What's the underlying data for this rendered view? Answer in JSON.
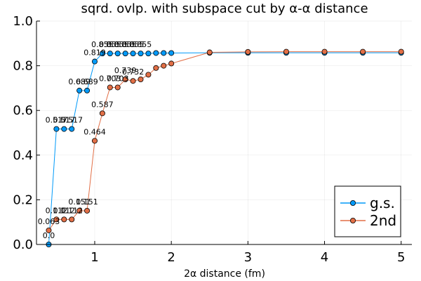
{
  "chart_data": {
    "type": "line",
    "title": "sqrd. ovlp. with subspace cut by α-α distance",
    "xlabel": "2α distance (fm)",
    "ylabel": "",
    "xlim": [
      0.24,
      5.14
    ],
    "ylim": [
      0,
      1.0
    ],
    "x_ticks": [
      1,
      2,
      3,
      4,
      5
    ],
    "x_tick_labels": [
      "1",
      "2",
      "3",
      "4",
      "5"
    ],
    "y_ticks": [
      0.0,
      0.2,
      0.4,
      0.6,
      0.8,
      1.0
    ],
    "y_tick_labels": [
      "0.0",
      "0.2",
      "0.4",
      "0.6",
      "0.8",
      "1.0"
    ],
    "grid": true,
    "legend_position": "bottom-right",
    "series": [
      {
        "name": "g.s.",
        "color": "#009af9",
        "x": [
          0.4,
          0.5,
          0.6,
          0.7,
          0.8,
          0.9,
          1.0,
          1.1,
          1.2,
          1.3,
          1.4,
          1.5,
          1.6,
          1.7,
          1.8,
          1.9,
          2.0,
          2.5,
          3.0,
          3.5,
          4.0,
          4.5,
          5.0
        ],
        "y": [
          0.0,
          0.517,
          0.517,
          0.517,
          0.689,
          0.689,
          0.819,
          0.855,
          0.855,
          0.855,
          0.855,
          0.855,
          0.855,
          0.855,
          0.857,
          0.857,
          0.857,
          0.858,
          0.858,
          0.858,
          0.858,
          0.858,
          0.858
        ],
        "annotations": [
          {
            "x": 0.4,
            "y": 0.0,
            "text": "0.0"
          },
          {
            "x": 0.5,
            "y": 0.517,
            "text": "0.517"
          },
          {
            "x": 0.6,
            "y": 0.517,
            "text": "0.517"
          },
          {
            "x": 0.7,
            "y": 0.517,
            "text": "0.517"
          },
          {
            "x": 0.8,
            "y": 0.689,
            "text": "0.689"
          },
          {
            "x": 0.9,
            "y": 0.689,
            "text": "0.689"
          },
          {
            "x": 1.0,
            "y": 0.819,
            "text": "0.819"
          },
          {
            "x": 1.1,
            "y": 0.855,
            "text": "0.855"
          },
          {
            "x": 1.2,
            "y": 0.855,
            "text": "0.855"
          },
          {
            "x": 1.3,
            "y": 0.855,
            "text": "0.855"
          },
          {
            "x": 1.4,
            "y": 0.855,
            "text": "0.855"
          },
          {
            "x": 1.5,
            "y": 0.855,
            "text": "0.855"
          },
          {
            "x": 1.6,
            "y": 0.855,
            "text": "0.855"
          }
        ]
      },
      {
        "name": "2nd",
        "color": "#e26f46",
        "x": [
          0.4,
          0.5,
          0.6,
          0.7,
          0.8,
          0.9,
          1.0,
          1.1,
          1.2,
          1.3,
          1.4,
          1.5,
          1.6,
          1.7,
          1.8,
          1.9,
          2.0,
          2.5,
          3.0,
          3.5,
          4.0,
          4.5,
          5.0
        ],
        "y": [
          0.063,
          0.112,
          0.112,
          0.112,
          0.151,
          0.151,
          0.464,
          0.587,
          0.703,
          0.703,
          0.739,
          0.732,
          0.739,
          0.76,
          0.79,
          0.8,
          0.81,
          0.86,
          0.862,
          0.863,
          0.863,
          0.863,
          0.863
        ],
        "annotations": [
          {
            "x": 0.4,
            "y": 0.063,
            "text": "0.063"
          },
          {
            "x": 0.5,
            "y": 0.112,
            "text": "0.112"
          },
          {
            "x": 0.6,
            "y": 0.112,
            "text": "0.112"
          },
          {
            "x": 0.7,
            "y": 0.112,
            "text": "0.112"
          },
          {
            "x": 0.8,
            "y": 0.151,
            "text": "0.151"
          },
          {
            "x": 0.9,
            "y": 0.151,
            "text": "0.151"
          },
          {
            "x": 1.0,
            "y": 0.464,
            "text": "0.464"
          },
          {
            "x": 1.1,
            "y": 0.587,
            "text": "0.587"
          },
          {
            "x": 1.2,
            "y": 0.703,
            "text": "0.703"
          },
          {
            "x": 1.3,
            "y": 0.703,
            "text": "0.703"
          },
          {
            "x": 1.4,
            "y": 0.739,
            "text": "0.739"
          },
          {
            "x": 1.5,
            "y": 0.732,
            "text": "0.732"
          }
        ]
      }
    ]
  }
}
